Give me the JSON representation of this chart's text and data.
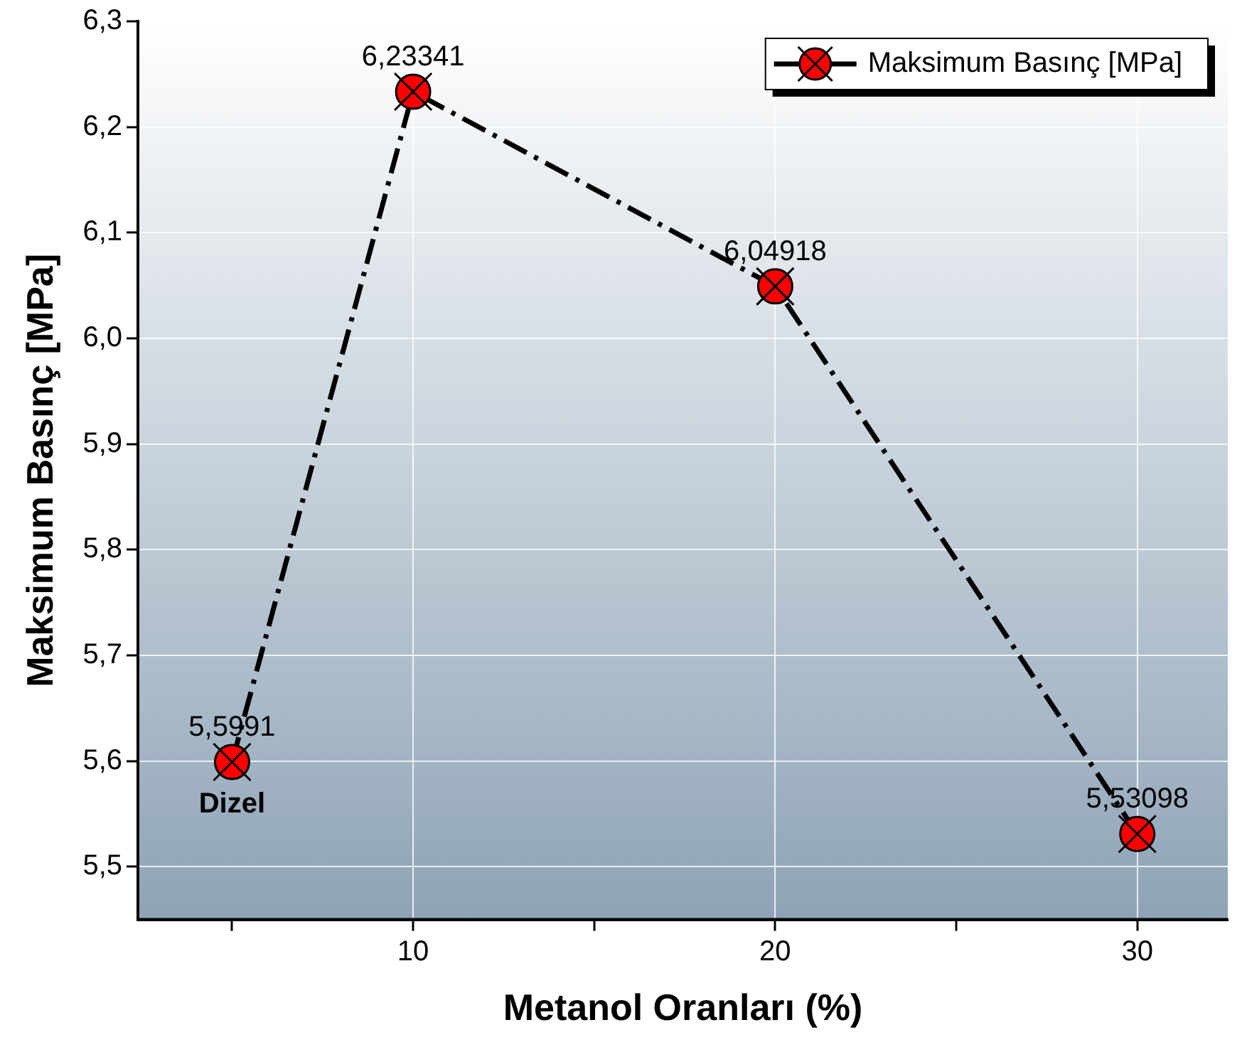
{
  "chart_data": {
    "type": "line",
    "xlabel": "Metanol Oranları (%)",
    "ylabel": "Maksimum Basınç [MPa]",
    "x": [
      5,
      10,
      20,
      30
    ],
    "series": [
      {
        "name": "Maksimum Basınç [MPa]",
        "color": "#ff0000",
        "values": [
          5.5991,
          6.23341,
          6.04918,
          5.53098
        ],
        "value_labels": [
          "5,5991",
          "6,23341",
          "6,04918",
          "5,53098"
        ]
      }
    ],
    "xlim": [
      2.4,
      32.5
    ],
    "ylim": [
      5.45,
      6.3
    ],
    "xticks": [
      {
        "value": 5,
        "label": null
      },
      {
        "value": 10,
        "label": "10"
      },
      {
        "value": 15,
        "label": null
      },
      {
        "value": 20,
        "label": "20"
      },
      {
        "value": 25,
        "label": null
      },
      {
        "value": 30,
        "label": "30"
      }
    ],
    "yticks": [
      {
        "value": 5.5,
        "label": "5,5"
      },
      {
        "value": 5.6,
        "label": "5,6"
      },
      {
        "value": 5.7,
        "label": "5,7"
      },
      {
        "value": 5.8,
        "label": "5,8"
      },
      {
        "value": 5.9,
        "label": "5,9"
      },
      {
        "value": 6.0,
        "label": "6,0"
      },
      {
        "value": 6.1,
        "label": "6,1"
      },
      {
        "value": 6.2,
        "label": "6,2"
      },
      {
        "value": 6.3,
        "label": "6,3"
      }
    ],
    "annotations": [
      {
        "text": "Dizel",
        "x": 5,
        "y": 5.5991
      }
    ],
    "grid": true,
    "legend": "top right",
    "marker": "circle",
    "line_style": "dashed"
  }
}
